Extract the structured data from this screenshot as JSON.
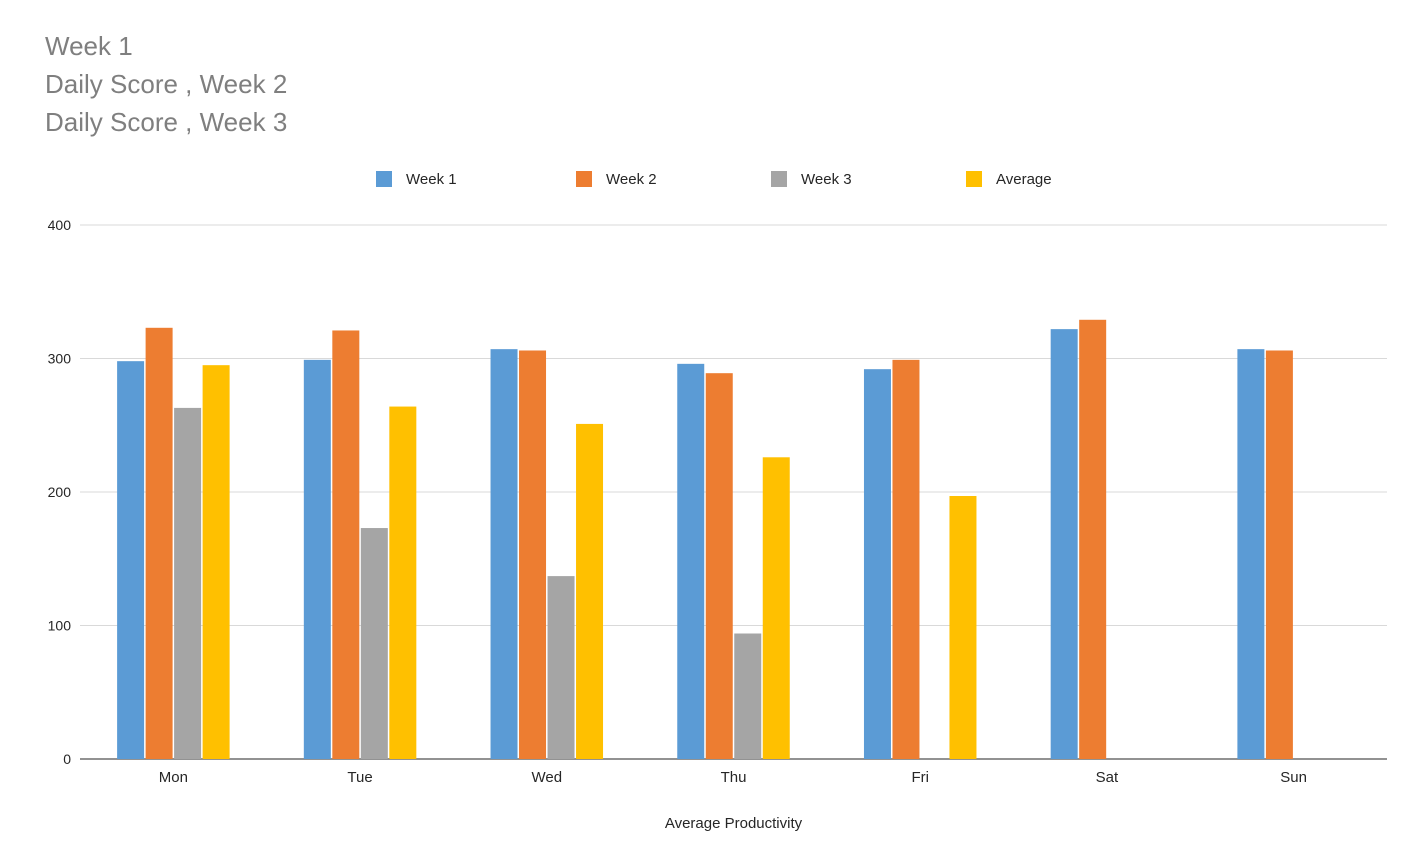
{
  "title_lines": [
    "Week 1",
    "Daily Score , Week 2",
    "Daily Score , Week 3"
  ],
  "chart_data": {
    "type": "bar",
    "title": "Week 1\nDaily Score , Week 2\nDaily Score , Week 3",
    "xlabel": "Average Productivity",
    "ylabel": "",
    "categories": [
      "Mon",
      "Tue",
      "Wed",
      "Thu",
      "Fri",
      "Sat",
      "Sun"
    ],
    "ylim": [
      0,
      400
    ],
    "yticks": [
      0,
      100,
      200,
      300,
      400
    ],
    "grid": true,
    "legend_position": "top",
    "series": [
      {
        "name": "Week 1",
        "color": "#5b9bd5",
        "values": [
          298,
          299,
          307,
          296,
          292,
          322,
          307
        ]
      },
      {
        "name": "Week 2",
        "color": "#ed7d31",
        "values": [
          323,
          321,
          306,
          289,
          299,
          329,
          306
        ]
      },
      {
        "name": "Week 3",
        "color": "#a5a5a5",
        "values": [
          263,
          173,
          137,
          94,
          null,
          null,
          null
        ]
      },
      {
        "name": "Average",
        "color": "#ffc000",
        "values": [
          295,
          264,
          251,
          226,
          197,
          null,
          null
        ]
      }
    ]
  }
}
